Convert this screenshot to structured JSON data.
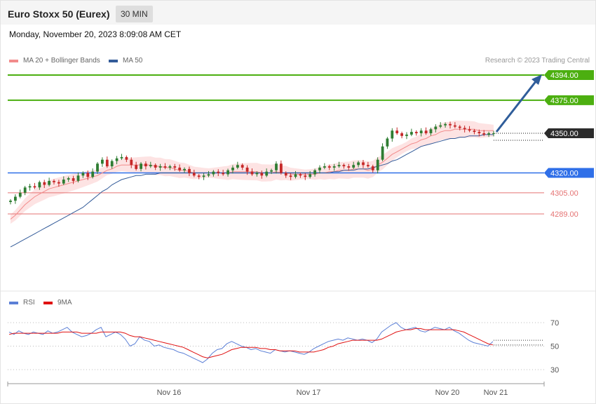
{
  "header": {
    "title": "Euro Stoxx 50 (Eurex)",
    "timeframe": "30 MIN"
  },
  "timestamp": "Monday, November 20, 2023 8:09:08 AM CET",
  "credit": "Research © 2023 Trading Central",
  "legend_main": [
    {
      "label": "MA 20 + Bollinger Bands",
      "color": "#f28b8b"
    },
    {
      "label": "MA 50",
      "color": "#335b99"
    }
  ],
  "legend_rsi": [
    {
      "label": "RSI",
      "color": "#5b7fd6"
    },
    {
      "label": "9MA",
      "color": "#e01010"
    }
  ],
  "colors": {
    "up": "#2e7d32",
    "down": "#c62828",
    "resistance": "#4caf10",
    "pivot": "#2f6fe8",
    "support": "#e57373",
    "last": "#333333",
    "arrow": "#2f5d9a"
  },
  "chart_data": [
    {
      "type": "candlestick",
      "title": "Euro Stoxx 50 (Eurex)",
      "interval": "30 MIN",
      "x_ticks": [
        "Nov 16",
        "Nov 17",
        "Nov 20",
        "Nov 21"
      ],
      "ylim": [
        4240,
        4400
      ],
      "levels": [
        {
          "value": 4394.0,
          "label": "4394.00",
          "kind": "resistance"
        },
        {
          "value": 4375.0,
          "label": "4375.00",
          "kind": "resistance"
        },
        {
          "value": 4350.0,
          "label": "4350.00",
          "kind": "last"
        },
        {
          "value": 4320.0,
          "label": "4320.00",
          "kind": "pivot"
        },
        {
          "value": 4305.0,
          "label": "4305.00",
          "kind": "support"
        },
        {
          "value": 4289.0,
          "label": "4289.00",
          "kind": "support"
        }
      ],
      "close": [
        4299,
        4302,
        4305,
        4309,
        4310,
        4309,
        4313,
        4311,
        4314,
        4313,
        4312,
        4315,
        4316,
        4314,
        4318,
        4320,
        4317,
        4321,
        4327,
        4330,
        4325,
        4329,
        4331,
        4332,
        4330,
        4326,
        4323,
        4327,
        4325,
        4326,
        4324,
        4325,
        4324,
        4325,
        4324,
        4322,
        4323,
        4320,
        4318,
        4317,
        4318,
        4319,
        4321,
        4320,
        4319,
        4322,
        4324,
        4326,
        4324,
        4321,
        4319,
        4320,
        4318,
        4321,
        4322,
        4327,
        4320,
        4318,
        4317,
        4319,
        4318,
        4317,
        4319,
        4322,
        4324,
        4325,
        4324,
        4325,
        4326,
        4325,
        4324,
        4326,
        4328,
        4326,
        4325,
        4322,
        4330,
        4340,
        4346,
        4352,
        4350,
        4348,
        4349,
        4351,
        4350,
        4352,
        4350,
        4353,
        4355,
        4356,
        4357,
        4356,
        4355,
        4354,
        4353,
        4352,
        4351,
        4350,
        4349,
        4350,
        4350
      ],
      "ma20": [
        4285,
        4288,
        4292,
        4296,
        4299,
        4302,
        4304,
        4306,
        4308,
        4309,
        4310,
        4311,
        4312,
        4313,
        4314,
        4315,
        4316,
        4317,
        4318,
        4320,
        4322,
        4323,
        4325,
        4326,
        4326,
        4326,
        4326,
        4326,
        4326,
        4326,
        4325,
        4325,
        4324,
        4324,
        4323,
        4322,
        4322,
        4321,
        4320,
        4320,
        4320,
        4320,
        4320,
        4320,
        4320,
        4320,
        4321,
        4321,
        4321,
        4321,
        4321,
        4321,
        4320,
        4320,
        4320,
        4321,
        4320,
        4320,
        4319,
        4319,
        4319,
        4319,
        4319,
        4319,
        4320,
        4320,
        4321,
        4321,
        4322,
        4322,
        4322,
        4323,
        4323,
        4323,
        4322,
        4323,
        4326,
        4328,
        4331,
        4334,
        4336,
        4338,
        4340,
        4342,
        4343,
        4345,
        4346,
        4348,
        4349,
        4351,
        4352,
        4352,
        4353,
        4353,
        4353,
        4353,
        4353,
        4352,
        4352,
        4352,
        4352
      ],
      "ma50": [
        4264,
        4266,
        4268,
        4270,
        4272,
        4274,
        4276,
        4278,
        4280,
        4282,
        4284,
        4286,
        4288,
        4290,
        4292,
        4294,
        4297,
        4300,
        4303,
        4306,
        4308,
        4311,
        4313,
        4315,
        4316,
        4317,
        4318,
        4318,
        4319,
        4319,
        4319,
        4320,
        4320,
        4320,
        4320,
        4320,
        4320,
        4320,
        4320,
        4320,
        4320,
        4320,
        4320,
        4320,
        4320,
        4320,
        4320,
        4320,
        4320,
        4320,
        4320,
        4320,
        4320,
        4320,
        4320,
        4320,
        4320,
        4320,
        4320,
        4320,
        4320,
        4320,
        4320,
        4320,
        4320,
        4320,
        4320,
        4321,
        4321,
        4322,
        4322,
        4322,
        4323,
        4323,
        4323,
        4324,
        4325,
        4326,
        4327,
        4329,
        4330,
        4332,
        4334,
        4336,
        4338,
        4340,
        4341,
        4342,
        4343,
        4344,
        4345,
        4346,
        4346,
        4347,
        4347,
        4348,
        4348,
        4348,
        4349,
        4349,
        4349
      ]
    },
    {
      "type": "line",
      "series": [
        {
          "name": "RSI",
          "values": [
            62,
            60,
            63,
            61,
            60,
            62,
            61,
            60,
            63,
            61,
            62,
            64,
            66,
            62,
            60,
            58,
            59,
            61,
            64,
            66,
            58,
            60,
            62,
            60,
            56,
            50,
            52,
            58,
            55,
            54,
            50,
            51,
            49,
            48,
            47,
            45,
            44,
            42,
            40,
            38,
            36,
            39,
            44,
            47,
            48,
            52,
            54,
            52,
            50,
            49,
            47,
            48,
            46,
            45,
            44,
            47,
            46,
            45,
            46,
            45,
            44,
            43,
            45,
            48,
            50,
            52,
            54,
            55,
            56,
            55,
            57,
            56,
            55,
            56,
            55,
            53,
            56,
            62,
            65,
            68,
            70,
            66,
            64,
            65,
            66,
            63,
            62,
            64,
            66,
            65,
            64,
            66,
            63,
            61,
            58,
            55,
            53,
            52,
            51,
            50,
            54
          ]
        },
        {
          "name": "9MA",
          "values": [
            60,
            61,
            61,
            61,
            61,
            61,
            61,
            61,
            61,
            61,
            61,
            62,
            62,
            62,
            62,
            61,
            61,
            61,
            61,
            62,
            62,
            62,
            62,
            62,
            61,
            59,
            58,
            58,
            57,
            56,
            55,
            54,
            53,
            52,
            51,
            50,
            49,
            47,
            45,
            43,
            41,
            40,
            41,
            42,
            43,
            45,
            47,
            48,
            49,
            49,
            49,
            49,
            48,
            48,
            47,
            47,
            46,
            46,
            46,
            46,
            45,
            45,
            45,
            45,
            46,
            47,
            49,
            50,
            52,
            53,
            54,
            55,
            55,
            55,
            55,
            55,
            55,
            56,
            58,
            60,
            62,
            63,
            64,
            64,
            65,
            65,
            64,
            64,
            64,
            64,
            64,
            64,
            64,
            63,
            62,
            60,
            58,
            56,
            54,
            52,
            51
          ]
        }
      ],
      "ylim": [
        20,
        80
      ],
      "y_ticks": [
        "70",
        "50",
        "30"
      ],
      "x_ticks": [
        "Nov 16",
        "Nov 17",
        "Nov 20",
        "Nov 21"
      ]
    }
  ]
}
